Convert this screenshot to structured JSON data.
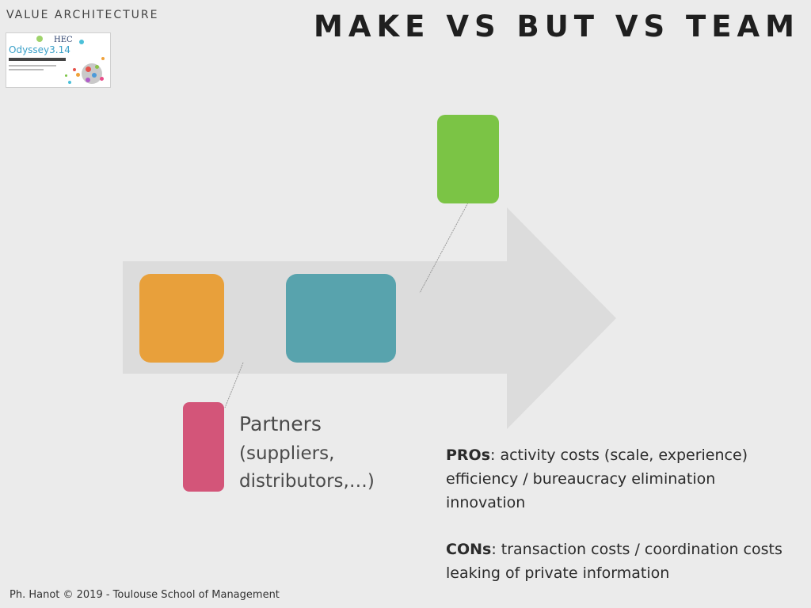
{
  "slide": {
    "section_label": "VALUE ARCHITECTURE",
    "title": "MAKE VS BUT VS TEAM",
    "thumbnail": {
      "logo_text": "HEC",
      "brand_text": "Odyssey3.14"
    },
    "partners": {
      "label": "Partners",
      "detail": "(suppliers,\ndistributors,…)"
    },
    "pros": {
      "heading": "PROs",
      "lines": [
        ": activity costs (scale, experience)",
        "efficiency / bureaucracy elimination",
        "innovation"
      ]
    },
    "cons": {
      "heading": "CONs",
      "lines": [
        ": transaction costs / coordination costs",
        "leaking of private information"
      ]
    },
    "footer": "Ph. Hanot © 2019  -  Toulouse School of Management",
    "colors": {
      "arrow": "#dcdcdc",
      "orange_block": "#e8a03b",
      "teal_block": "#58a3ad",
      "green_block": "#7bc445",
      "pink_block": "#d35579"
    }
  }
}
